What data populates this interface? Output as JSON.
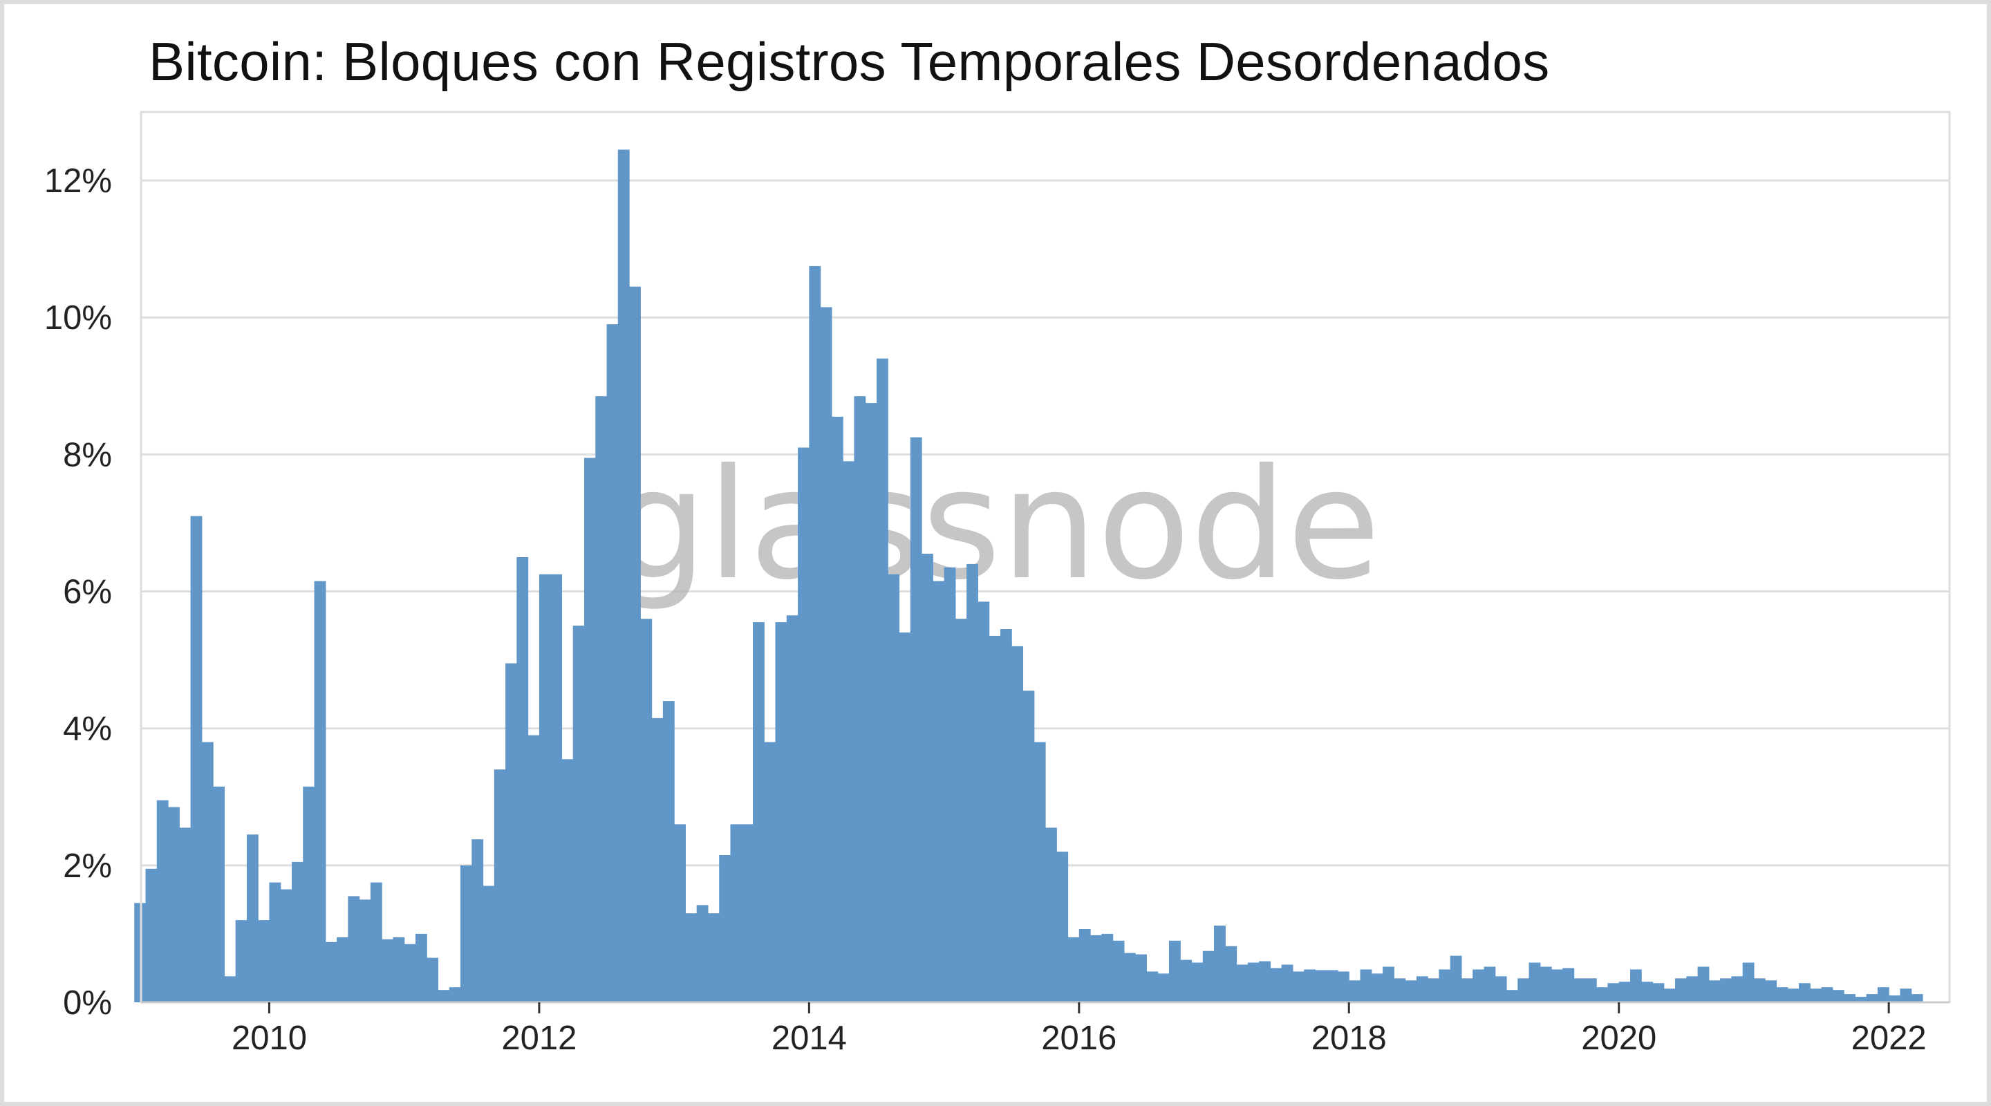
{
  "chart_data": {
    "type": "bar",
    "title": "Bitcoin: Bloques con Registros Temporales Desordenados",
    "xlabel": "",
    "ylabel": "",
    "unit": "%",
    "watermark": "glassnode",
    "x_ticks": [
      "2010",
      "2012",
      "2014",
      "2016",
      "2018",
      "2020",
      "2022"
    ],
    "y_ticks": [
      "0%",
      "2%",
      "4%",
      "6%",
      "8%",
      "10%",
      "12%"
    ],
    "xlim": [
      2009.05,
      2022.45
    ],
    "ylim": [
      0,
      13
    ],
    "grid": true,
    "bar_color": "#6097c8",
    "period": "monthly",
    "start": "2009-01",
    "values": [
      1.45,
      1.95,
      2.95,
      2.85,
      2.55,
      7.1,
      3.8,
      3.15,
      0.38,
      1.2,
      2.45,
      1.2,
      1.75,
      1.65,
      2.05,
      3.15,
      6.15,
      0.88,
      0.95,
      1.55,
      1.5,
      1.75,
      0.92,
      0.95,
      0.85,
      1.0,
      0.65,
      0.18,
      0.22,
      2.0,
      2.38,
      1.7,
      3.4,
      4.95,
      6.5,
      3.9,
      6.25,
      6.25,
      3.55,
      5.5,
      7.95,
      8.85,
      9.9,
      12.45,
      10.45,
      5.6,
      4.15,
      4.4,
      2.6,
      1.3,
      1.42,
      1.3,
      2.15,
      2.6,
      2.6,
      5.55,
      3.8,
      5.55,
      5.65,
      8.1,
      10.75,
      10.15,
      8.55,
      7.9,
      8.85,
      8.75,
      9.4,
      6.25,
      5.4,
      8.25,
      6.55,
      6.15,
      6.35,
      5.6,
      6.4,
      5.85,
      5.35,
      5.45,
      5.2,
      4.55,
      3.8,
      2.55,
      2.2,
      0.95,
      1.07,
      0.98,
      1.0,
      0.9,
      0.72,
      0.7,
      0.45,
      0.42,
      0.9,
      0.62,
      0.58,
      0.75,
      1.12,
      0.82,
      0.55,
      0.58,
      0.6,
      0.5,
      0.55,
      0.45,
      0.48,
      0.47,
      0.47,
      0.45,
      0.32,
      0.48,
      0.42,
      0.52,
      0.35,
      0.32,
      0.38,
      0.35,
      0.48,
      0.68,
      0.35,
      0.48,
      0.52,
      0.38,
      0.18,
      0.35,
      0.58,
      0.52,
      0.48,
      0.5,
      0.35,
      0.35,
      0.22,
      0.28,
      0.3,
      0.48,
      0.3,
      0.28,
      0.2,
      0.35,
      0.38,
      0.52,
      0.32,
      0.35,
      0.38,
      0.58,
      0.35,
      0.32,
      0.22,
      0.2,
      0.28,
      0.2,
      0.22,
      0.18,
      0.12,
      0.08,
      0.12,
      0.22,
      0.1,
      0.2,
      0.12
    ]
  }
}
